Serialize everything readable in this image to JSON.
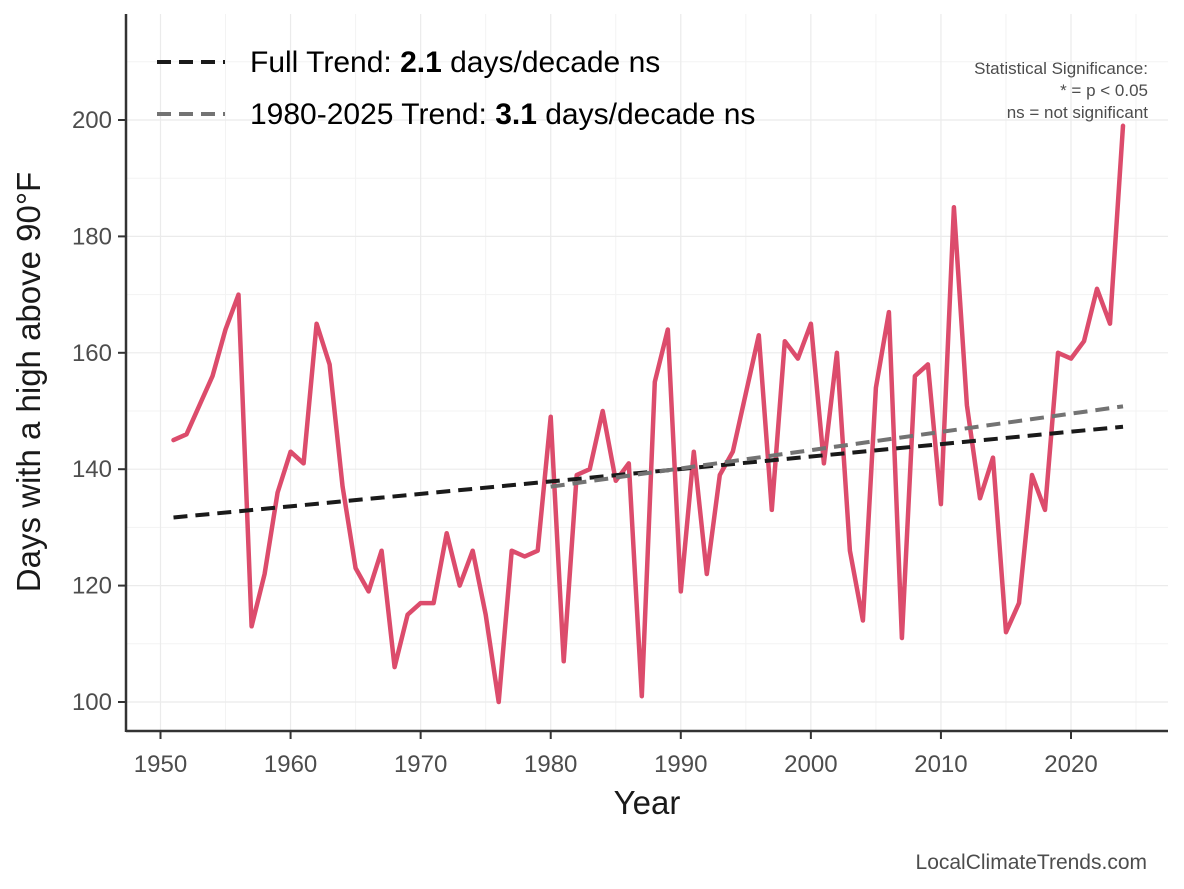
{
  "chart_data": {
    "type": "line",
    "xlabel": "Year",
    "ylabel": "Days with a high above 90°F",
    "xlim": [
      1948.5,
      2027.5
    ],
    "ylim": [
      95,
      215
    ],
    "x_ticks": [
      1950,
      1960,
      1970,
      1980,
      1990,
      2000,
      2010,
      2020
    ],
    "y_ticks": [
      100,
      120,
      140,
      160,
      180,
      200
    ],
    "grid": true,
    "legend_position": "top-left",
    "series": [
      {
        "color": "#dc4c6c",
        "x": [
          1951,
          1952,
          1953,
          1954,
          1955,
          1956,
          1957,
          1958,
          1959,
          1960,
          1961,
          1962,
          1963,
          1964,
          1965,
          1966,
          1967,
          1968,
          1969,
          1970,
          1971,
          1972,
          1973,
          1974,
          1975,
          1976,
          1977,
          1978,
          1979,
          1980,
          1981,
          1982,
          1983,
          1984,
          1985,
          1986,
          1987,
          1988,
          1989,
          1990,
          1991,
          1992,
          1993,
          1994,
          1995,
          1996,
          1997,
          1998,
          1999,
          2000,
          2001,
          2002,
          2003,
          2004,
          2005,
          2006,
          2007,
          2008,
          2009,
          2010,
          2011,
          2012,
          2013,
          2014,
          2015,
          2016,
          2017,
          2018,
          2019,
          2020,
          2021,
          2022,
          2023,
          2024
        ],
        "values": [
          145,
          146,
          151,
          156,
          164,
          170,
          113,
          122,
          136,
          143,
          141,
          165,
          158,
          137,
          123,
          119,
          126,
          106,
          115,
          117,
          117,
          129,
          120,
          126,
          115,
          100,
          126,
          125,
          126,
          149,
          107,
          139,
          140,
          150,
          138,
          141,
          101,
          155,
          164,
          119,
          143,
          122,
          139,
          143,
          153,
          163,
          133,
          162,
          159,
          165,
          141,
          160,
          126,
          114,
          154,
          167,
          111,
          156,
          158,
          134,
          185,
          151,
          135,
          142,
          112,
          117,
          139,
          133,
          160,
          159,
          162,
          171,
          165,
          199
        ]
      }
    ],
    "trends": [
      {
        "label": "Full Trend: ",
        "value": "2.1",
        "suffix": " days/decade ns",
        "color": "#1a1a1a",
        "x": [
          1951,
          2024
        ],
        "y": [
          131.7,
          147.3
        ]
      },
      {
        "label": "1980-2025 Trend: ",
        "value": "3.1",
        "suffix": " days/decade ns",
        "color": "#737373",
        "x": [
          1980,
          2024
        ],
        "y": [
          137.0,
          150.8
        ]
      }
    ],
    "annotation": {
      "lines": [
        "Statistical Significance:",
        "* = p < 0.05",
        "ns = not significant"
      ]
    },
    "credit": "LocalClimateTrends.com"
  }
}
